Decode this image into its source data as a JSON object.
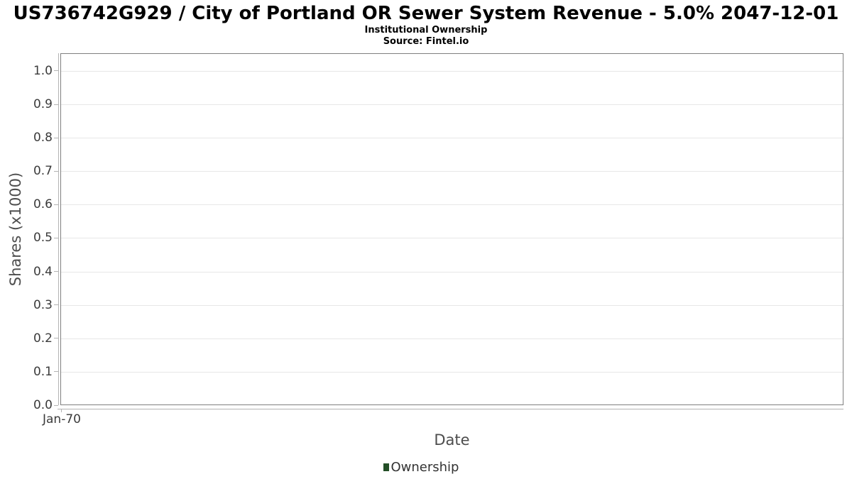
{
  "header": {
    "title": "US736742G929 / City of Portland OR Sewer System Revenue - 5.0% 2047-12-01",
    "subtitle": "Institutional Ownership",
    "source": "Source: Fintel.io"
  },
  "chart_data": {
    "type": "line",
    "title": "US736742G929 / City of Portland OR Sewer System Revenue - 5.0% 2047-12-01",
    "subtitle": "Institutional Ownership",
    "source": "Source: Fintel.io",
    "xlabel": "Date",
    "ylabel": "Shares (x1000)",
    "x_ticks": [
      "Jan-70"
    ],
    "y_ticks": [
      {
        "v": 0.0,
        "label": "0.0"
      },
      {
        "v": 0.1,
        "label": "0.1"
      },
      {
        "v": 0.2,
        "label": "0.2"
      },
      {
        "v": 0.3,
        "label": "0.3"
      },
      {
        "v": 0.4,
        "label": "0.4"
      },
      {
        "v": 0.5,
        "label": "0.5"
      },
      {
        "v": 0.6,
        "label": "0.6"
      },
      {
        "v": 0.7,
        "label": "0.7"
      },
      {
        "v": 0.8,
        "label": "0.8"
      },
      {
        "v": 0.9,
        "label": "0.9"
      },
      {
        "v": 1.0,
        "label": "1.0"
      }
    ],
    "ylim": [
      0,
      1.053
    ],
    "grid": true,
    "legend_position": "bottom",
    "series": [
      {
        "name": "Ownership",
        "color": "#234f27",
        "values": []
      }
    ],
    "colors": {
      "grid": "#e7e7e7",
      "plot_border": "#7f7f7f",
      "axis_line": "#b3b3b3",
      "tick_text": "#3b3b3b",
      "axis_label_text": "#4d4d4d",
      "legend_swatch": "#234f27"
    }
  }
}
